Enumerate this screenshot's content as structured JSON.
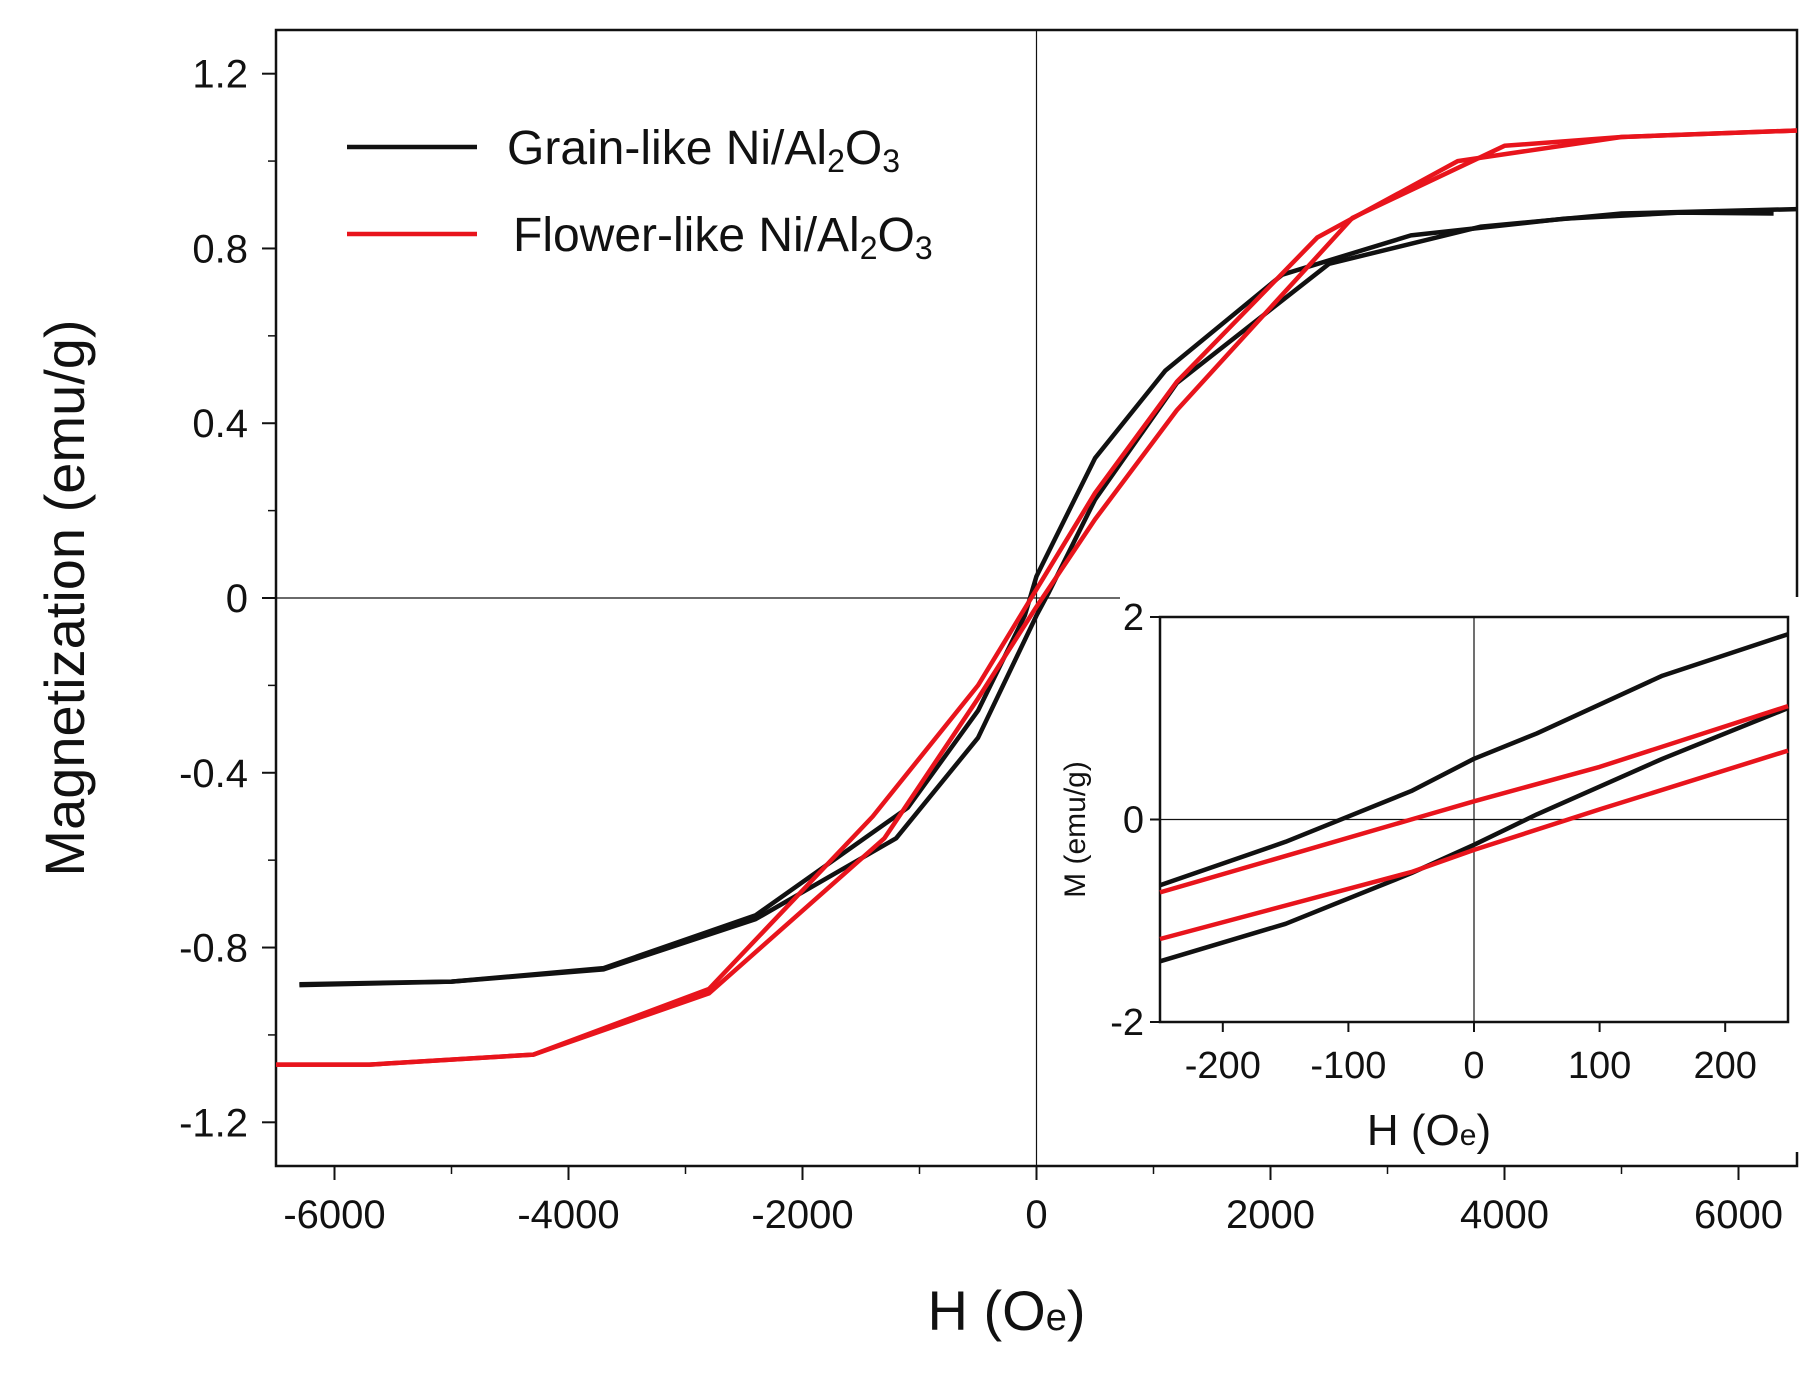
{
  "chart_data": [
    {
      "type": "line",
      "title": "",
      "xlabel": {
        "main": "H (O",
        "sub": "e",
        "end": ")"
      },
      "ylabel": "Magnetization (emu/g)",
      "xlim": [
        -6500,
        6500
      ],
      "ylim": [
        -1.3,
        1.3
      ],
      "x_ticks": [
        -6000,
        -4000,
        -2000,
        0,
        2000,
        4000,
        6000
      ],
      "x_tick_labels": [
        "-6000",
        "-4000",
        "-2000",
        "0",
        "2000",
        "4000",
        "6000"
      ],
      "y_ticks": [
        -1.2,
        -0.8,
        -0.4,
        0,
        0.4,
        0.8,
        1.2
      ],
      "y_tick_labels": [
        "-1.2",
        "-0.8",
        "-0.4",
        "0",
        "0.4",
        "0.8",
        "1.2"
      ],
      "grid": false,
      "legend_position": "top-left",
      "series": [
        {
          "name": {
            "main": "Grain-like Ni/Al",
            "sub1": "2",
            "mid": "O",
            "sub2": "3"
          },
          "color": "#111111",
          "branches": [
            [
              [
                -6300,
                -0.886
              ],
              [
                -5000,
                -0.878
              ],
              [
                -3700,
                -0.847
              ],
              [
                -2400,
                -0.726
              ],
              [
                -1100,
                -0.48
              ],
              [
                -500,
                -0.258
              ],
              [
                -100,
                -0.04
              ],
              [
                0,
                0.05
              ],
              [
                500,
                0.32
              ],
              [
                1100,
                0.52
              ],
              [
                2100,
                0.74
              ],
              [
                3200,
                0.83
              ],
              [
                4500,
                0.868
              ],
              [
                5500,
                0.882
              ],
              [
                6300,
                0.88
              ]
            ],
            [
              [
                6500,
                0.89
              ],
              [
                5000,
                0.88
              ],
              [
                3800,
                0.85
              ],
              [
                2500,
                0.765
              ],
              [
                1200,
                0.492
              ],
              [
                500,
                0.225
              ],
              [
                100,
                0.01
              ],
              [
                0,
                -0.04
              ],
              [
                -500,
                -0.32
              ],
              [
                -1200,
                -0.55
              ],
              [
                -2400,
                -0.735
              ],
              [
                -3700,
                -0.85
              ],
              [
                -5000,
                -0.878
              ],
              [
                -6300,
                -0.884
              ]
            ]
          ]
        },
        {
          "name": {
            "main": "Flower-like Ni/Al",
            "sub1": "2",
            "mid": "O",
            "sub2": "3"
          },
          "color": "#e8141c",
          "branches": [
            [
              [
                -6500,
                -1.068
              ],
              [
                -5700,
                -1.068
              ],
              [
                -4300,
                -1.045
              ],
              [
                -2800,
                -0.895
              ],
              [
                -1400,
                -0.5
              ],
              [
                -500,
                -0.2
              ],
              [
                0,
                0.02
              ],
              [
                500,
                0.24
              ],
              [
                1200,
                0.495
              ],
              [
                2400,
                0.825
              ],
              [
                3600,
                1.0
              ],
              [
                5000,
                1.055
              ],
              [
                6500,
                1.07
              ]
            ],
            [
              [
                6500,
                1.07
              ],
              [
                5000,
                1.055
              ],
              [
                4000,
                1.035
              ],
              [
                2700,
                0.87
              ],
              [
                1200,
                0.43
              ],
              [
                500,
                0.18
              ],
              [
                0,
                -0.02
              ],
              [
                -500,
                -0.23
              ],
              [
                -1300,
                -0.55
              ],
              [
                -2800,
                -0.905
              ],
              [
                -4300,
                -1.045
              ],
              [
                -5700,
                -1.068
              ],
              [
                -6500,
                -1.068
              ]
            ]
          ]
        }
      ]
    },
    {
      "type": "line",
      "title": "",
      "xlabel": {
        "main": "H (O",
        "sub": "e",
        "end": ")"
      },
      "ylabel": "M (emu/g)",
      "xlim": [
        -250,
        250
      ],
      "ylim": [
        -2,
        2
      ],
      "x_ticks": [
        -200,
        -100,
        0,
        100,
        200
      ],
      "x_tick_labels": [
        "-200",
        "-100",
        "0",
        "100",
        "200"
      ],
      "y_ticks": [
        -2,
        0,
        2
      ],
      "y_tick_labels": [
        "-2",
        "0",
        "2"
      ],
      "grid": false,
      "series": [
        {
          "color": "#111111",
          "branches": [
            [
              [
                -250,
                -0.65
              ],
              [
                -150,
                -0.22
              ],
              [
                -50,
                0.28
              ],
              [
                0,
                0.6
              ],
              [
                50,
                0.85
              ],
              [
                150,
                1.42
              ],
              [
                250,
                1.83
              ]
            ],
            [
              [
                -250,
                -1.4
              ],
              [
                -150,
                -1.03
              ],
              [
                -50,
                -0.53
              ],
              [
                0,
                -0.25
              ],
              [
                50,
                0.05
              ],
              [
                150,
                0.6
              ],
              [
                250,
                1.1
              ]
            ]
          ]
        },
        {
          "color": "#e8141c",
          "branches": [
            [
              [
                -250,
                -0.72
              ],
              [
                -50,
                0.0
              ],
              [
                0,
                0.18
              ],
              [
                100,
                0.52
              ],
              [
                250,
                1.12
              ]
            ],
            [
              [
                -250,
                -1.18
              ],
              [
                -50,
                -0.52
              ],
              [
                0,
                -0.3
              ],
              [
                100,
                0.1
              ],
              [
                250,
                0.68
              ]
            ]
          ]
        }
      ]
    }
  ]
}
